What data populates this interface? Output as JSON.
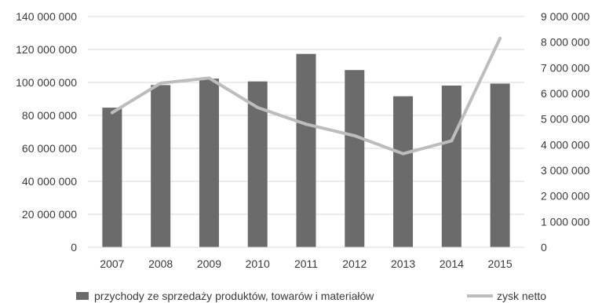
{
  "chart_data": {
    "type": "bar",
    "title": "",
    "xlabel": "",
    "ylabel": "",
    "categories": [
      "2007",
      "2008",
      "2009",
      "2010",
      "2011",
      "2012",
      "2013",
      "2014",
      "2015"
    ],
    "series": [
      {
        "name": "przychody ze sprzedaży produktów, towarów i materiałów",
        "type": "bar",
        "axis": "left",
        "color": "#6b6b6b",
        "values": [
          84700000,
          98400000,
          102300000,
          100600000,
          117300000,
          107500000,
          91600000,
          98100000,
          99300000
        ]
      },
      {
        "name": "zysk netto",
        "type": "line",
        "axis": "right",
        "color": "#bdbdbd",
        "values": [
          5250000,
          6400000,
          6600000,
          5450000,
          4800000,
          4350000,
          3650000,
          4150000,
          8150000
        ]
      }
    ],
    "ylim_left": [
      0,
      140000000
    ],
    "ylim_right": [
      0,
      9000000
    ],
    "yticks_left": [
      "0",
      "20 000 000",
      "40 000 000",
      "60 000 000",
      "80 000 000",
      "100 000 000",
      "120 000 000",
      "140 000 000"
    ],
    "yticks_right": [
      "0",
      "1 000 000",
      "2 000 000",
      "3 000 000",
      "4 000 000",
      "5 000 000",
      "6 000 000",
      "7 000 000",
      "8 000 000",
      "9 000 000"
    ],
    "grid": true,
    "legend_position": "bottom"
  }
}
